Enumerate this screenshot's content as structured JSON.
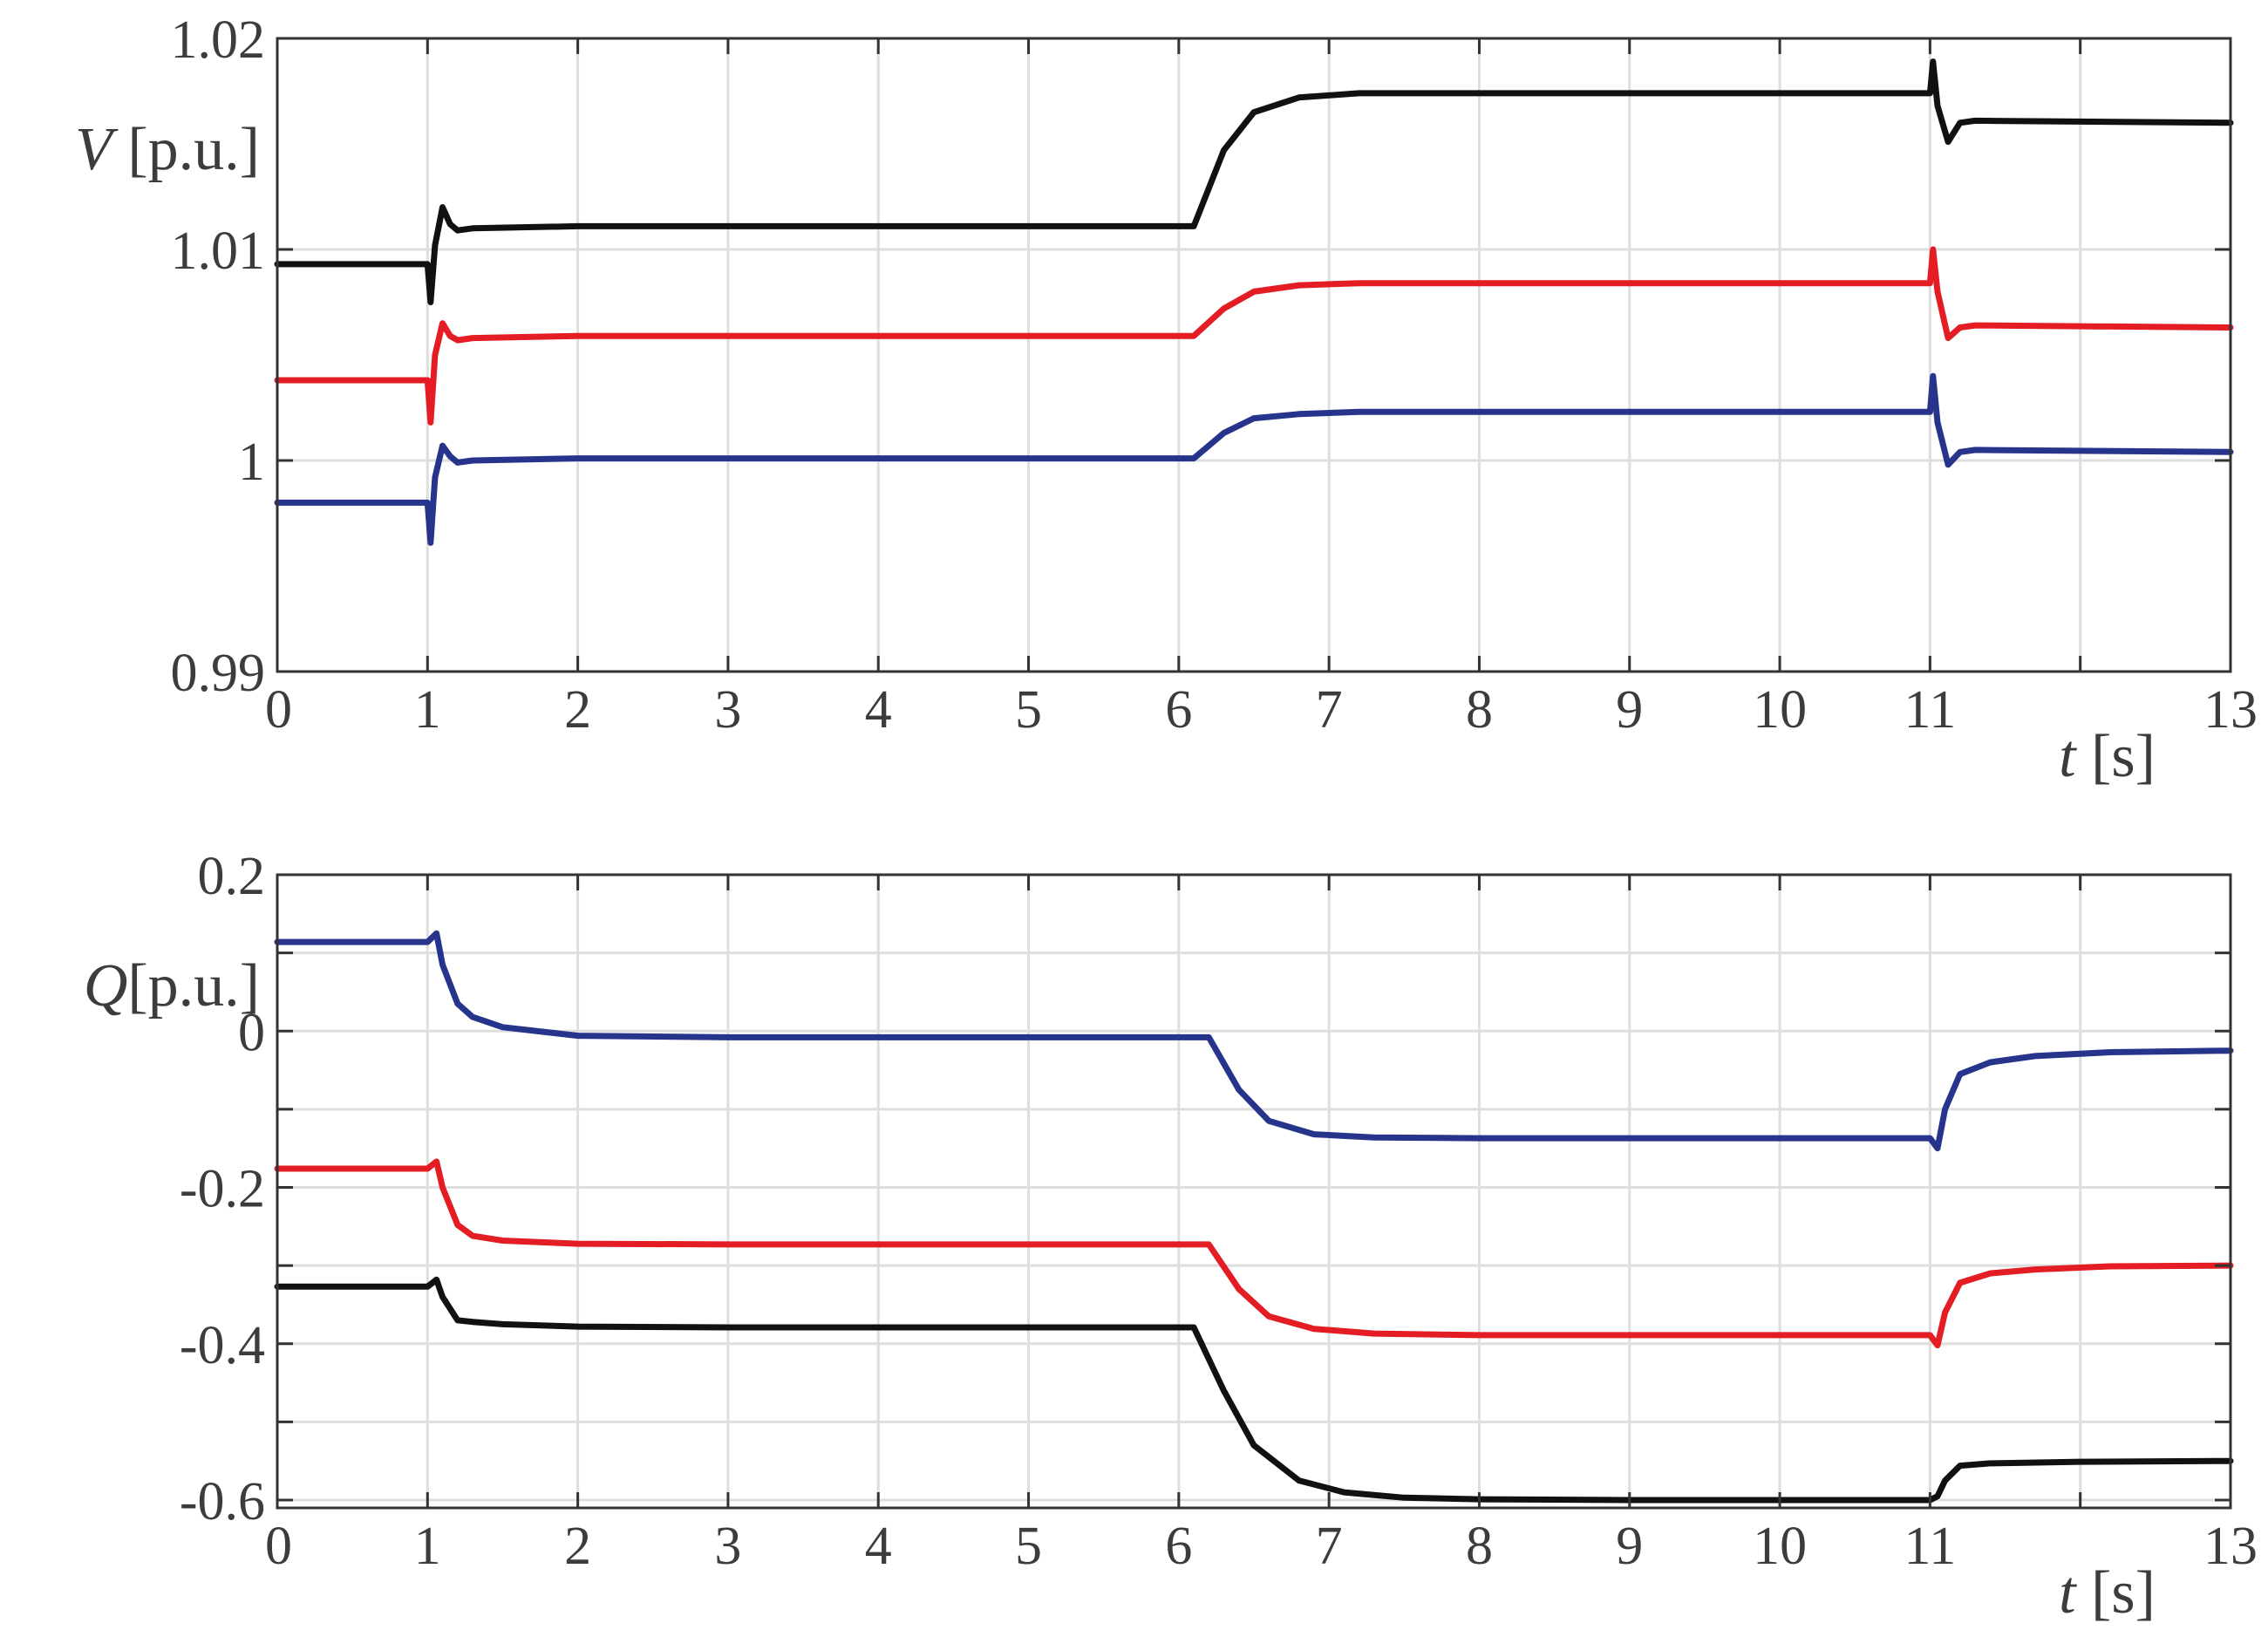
{
  "chart_data": [
    {
      "type": "line",
      "ylabel_symbol": "V",
      "ylabel_unit": " [p.u.]",
      "xlabel_symbol": "t",
      "xlabel_unit": " [s]",
      "xlim": [
        0,
        13
      ],
      "ylim": [
        0.99,
        1.02
      ],
      "x_ticks": [
        "0",
        "1",
        "2",
        "3",
        "4",
        "5",
        "6",
        "7",
        "8",
        "9",
        "10",
        "11",
        "13"
      ],
      "x_tick_values": [
        0,
        1,
        2,
        3,
        4,
        5,
        6,
        7,
        8,
        9,
        10,
        11,
        13
      ],
      "y_ticks": [
        "0.99",
        "1",
        "1.01",
        "1.02"
      ],
      "y_tick_values": [
        0.99,
        1.0,
        1.01,
        1.02
      ],
      "grid": true,
      "series": [
        {
          "color": "#111111",
          "x": [
            0,
            1.0,
            1.02,
            1.05,
            1.1,
            1.15,
            1.2,
            1.3,
            2,
            6.1,
            6.3,
            6.5,
            6.8,
            7.2,
            8,
            11,
            11.02,
            11.05,
            11.12,
            11.2,
            11.3,
            13
          ],
          "y": [
            1.0093,
            1.0093,
            1.0075,
            1.0102,
            1.012,
            1.0112,
            1.0109,
            1.011,
            1.0111,
            1.0111,
            1.0147,
            1.0165,
            1.0172,
            1.0174,
            1.0174,
            1.0174,
            1.0189,
            1.0168,
            1.0151,
            1.016,
            1.0161,
            1.016
          ]
        },
        {
          "color": "#e31d23",
          "x": [
            0,
            1.0,
            1.02,
            1.05,
            1.1,
            1.15,
            1.2,
            1.3,
            2,
            6.1,
            6.3,
            6.5,
            6.8,
            7.2,
            8,
            11,
            11.02,
            11.05,
            11.12,
            11.2,
            11.3,
            13
          ],
          "y": [
            1.0038,
            1.0038,
            1.0018,
            1.005,
            1.0065,
            1.0059,
            1.0057,
            1.0058,
            1.0059,
            1.0059,
            1.0072,
            1.008,
            1.0083,
            1.0084,
            1.0084,
            1.0084,
            1.01,
            1.008,
            1.0058,
            1.0063,
            1.0064,
            1.0063
          ]
        },
        {
          "color": "#27348b",
          "x": [
            0,
            1.0,
            1.02,
            1.05,
            1.1,
            1.15,
            1.2,
            1.3,
            2,
            6.1,
            6.3,
            6.5,
            6.8,
            7.2,
            8,
            11,
            11.02,
            11.05,
            11.12,
            11.2,
            11.3,
            13
          ],
          "y": [
            0.998,
            0.998,
            0.9961,
            0.9992,
            1.0007,
            1.0002,
            0.9999,
            1.0,
            1.0001,
            1.0001,
            1.0013,
            1.002,
            1.0022,
            1.0023,
            1.0023,
            1.0023,
            1.004,
            1.0018,
            0.9998,
            1.0004,
            1.0005,
            1.0004
          ]
        }
      ]
    },
    {
      "type": "line",
      "ylabel_symbol": "Q",
      "ylabel_unit": "[p.u.]",
      "xlabel_symbol": "t",
      "xlabel_unit": " [s]",
      "xlim": [
        0,
        13
      ],
      "ylim": [
        -0.61,
        0.2
      ],
      "x_ticks": [
        "0",
        "1",
        "2",
        "3",
        "4",
        "5",
        "6",
        "7",
        "8",
        "9",
        "10",
        "11",
        "13"
      ],
      "x_tick_values": [
        0,
        1,
        2,
        3,
        4,
        5,
        6,
        7,
        8,
        9,
        10,
        11,
        13
      ],
      "y_ticks": [
        "-0.6",
        "-0.4",
        "-0.2",
        "0",
        "0.2"
      ],
      "y_tick_values": [
        -0.6,
        -0.4,
        -0.2,
        0,
        0.2
      ],
      "y_minor_grid": [
        -0.5,
        -0.3,
        -0.1,
        0.1
      ],
      "grid": true,
      "series": [
        {
          "color": "#27348b",
          "x": [
            0,
            1.0,
            1.06,
            1.1,
            1.2,
            1.3,
            1.5,
            2,
            3,
            6.2,
            6.4,
            6.6,
            6.9,
            7.3,
            8,
            11,
            11.05,
            11.1,
            11.2,
            11.4,
            11.7,
            12.2,
            13
          ],
          "y": [
            0.114,
            0.114,
            0.125,
            0.085,
            0.035,
            0.018,
            0.005,
            -0.006,
            -0.008,
            -0.008,
            -0.075,
            -0.115,
            -0.132,
            -0.136,
            -0.137,
            -0.137,
            -0.15,
            -0.1,
            -0.055,
            -0.04,
            -0.032,
            -0.027,
            -0.025
          ]
        },
        {
          "color": "#e31d23",
          "x": [
            0,
            1.0,
            1.06,
            1.1,
            1.2,
            1.3,
            1.5,
            2,
            3,
            6.2,
            6.4,
            6.6,
            6.9,
            7.3,
            8,
            11,
            11.05,
            11.1,
            11.2,
            11.4,
            11.7,
            12.2,
            13
          ],
          "y": [
            -0.176,
            -0.176,
            -0.167,
            -0.2,
            -0.248,
            -0.262,
            -0.268,
            -0.272,
            -0.273,
            -0.273,
            -0.33,
            -0.365,
            -0.381,
            -0.387,
            -0.389,
            -0.389,
            -0.402,
            -0.36,
            -0.322,
            -0.31,
            -0.305,
            -0.301,
            -0.3
          ]
        },
        {
          "color": "#111111",
          "x": [
            0,
            1.0,
            1.06,
            1.1,
            1.2,
            1.3,
            1.5,
            2,
            3,
            6.1,
            6.3,
            6.5,
            6.8,
            7.1,
            7.5,
            8,
            9,
            11,
            11.05,
            11.1,
            11.2,
            11.4,
            12,
            13
          ],
          "y": [
            -0.327,
            -0.327,
            -0.318,
            -0.34,
            -0.37,
            -0.372,
            -0.375,
            -0.378,
            -0.379,
            -0.379,
            -0.46,
            -0.53,
            -0.575,
            -0.59,
            -0.597,
            -0.599,
            -0.6,
            -0.6,
            -0.595,
            -0.575,
            -0.556,
            -0.553,
            -0.551,
            -0.55
          ]
        }
      ]
    }
  ]
}
